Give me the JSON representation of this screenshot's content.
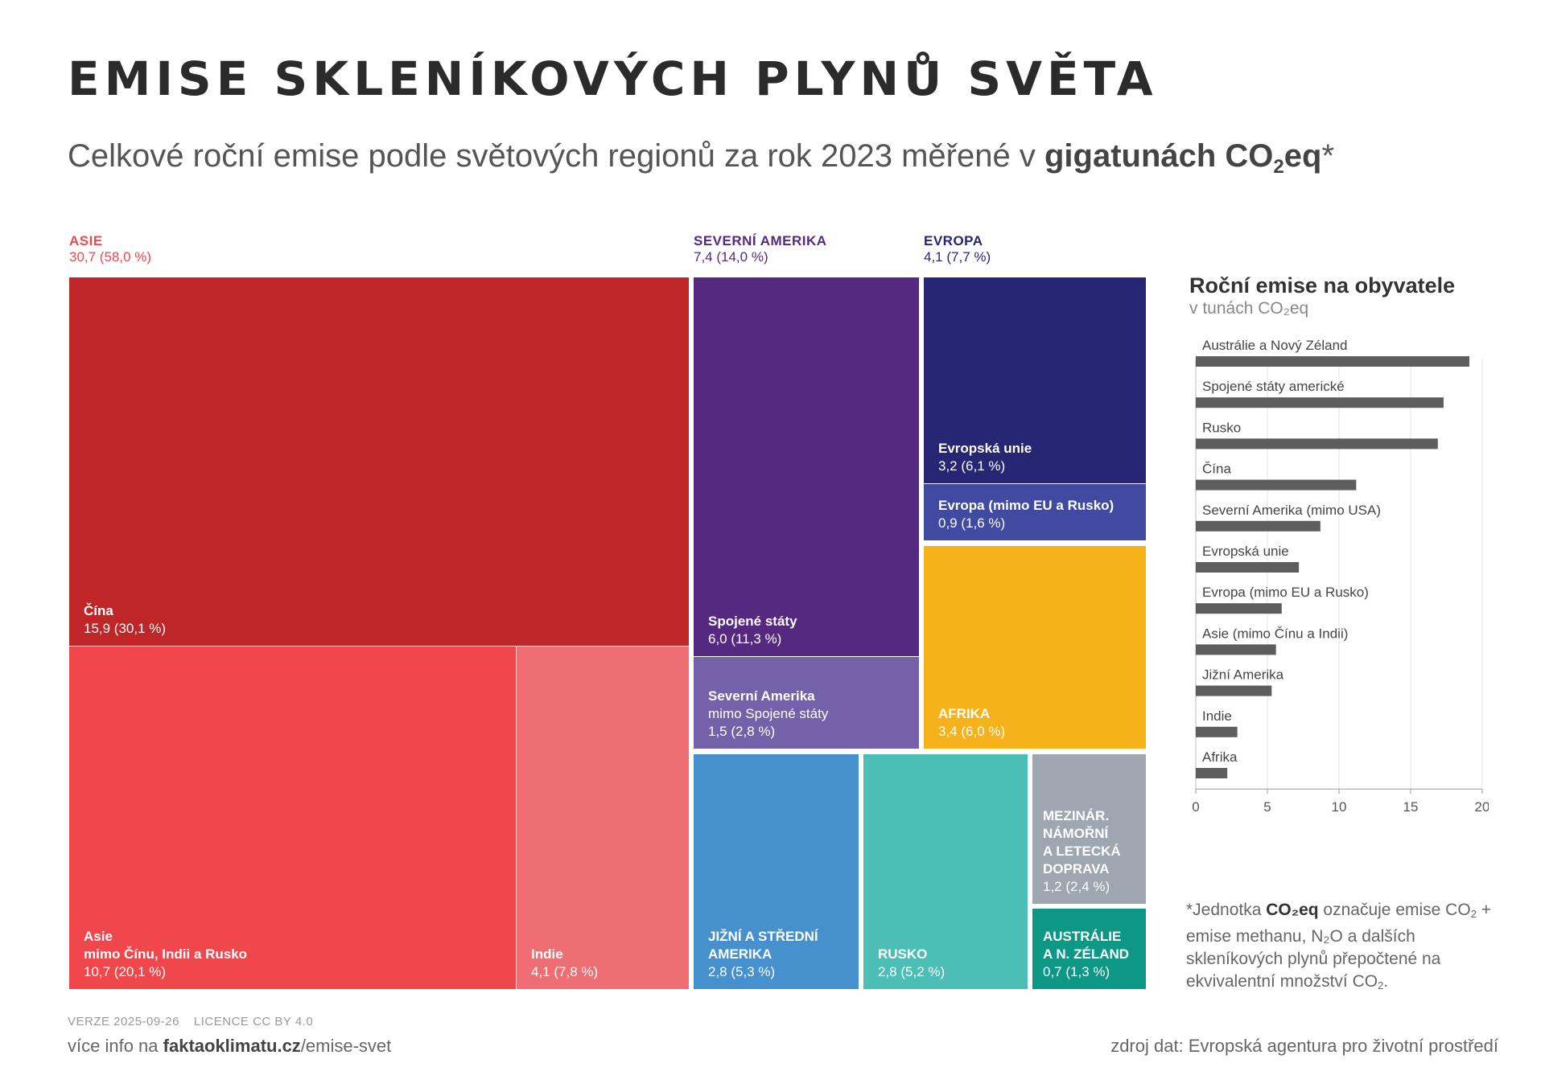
{
  "header": {
    "title": "EMISE SKLENÍKOVÝCH PLYNŮ SVĚTA",
    "subtitle_pre": "Celkové roční emise podle světových regionů za rok 2023 měřené v ",
    "subtitle_bold": "gigatunách CO",
    "subtitle_sub": "2",
    "subtitle_bold2": "eq",
    "subtitle_post": "*"
  },
  "chart_data": [
    {
      "type": "treemap",
      "unit": "gigatuny CO2eq",
      "groups": [
        {
          "name": "ASIE",
          "label_value": "30,7 (58,0 %)",
          "value": 30.7,
          "share": 58.0,
          "color": "#e94a4f"
        },
        {
          "name": "SEVERNÍ AMERIKA",
          "label_value": "7,4 (14,0 %)",
          "value": 7.4,
          "share": 14.0,
          "color": "#55297f"
        },
        {
          "name": "EVROPA",
          "label_value": "4,1 (7,7 %)",
          "value": 4.1,
          "share": 7.7,
          "color": "#262674"
        }
      ],
      "tiles": [
        {
          "id": "cina",
          "name": "Čína",
          "sub": "",
          "label_value": "15,9 (30,1 %)",
          "value": 15.9,
          "share": 30.1,
          "color": "#c02527"
        },
        {
          "id": "asie-ostatni",
          "name": "Asie",
          "sub": "mimo Čínu, Indii a Rusko",
          "label_value": "10,7 (20,1 %)",
          "value": 10.7,
          "share": 20.1,
          "color": "#ef474c"
        },
        {
          "id": "indie",
          "name": "Indie",
          "sub": "",
          "label_value": "4,1 (7,8 %)",
          "value": 4.1,
          "share": 7.8,
          "color": "#ef6e73"
        },
        {
          "id": "usa",
          "name": "Spojené státy",
          "sub": "",
          "label_value": "6,0 (11,3 %)",
          "value": 6.0,
          "share": 11.3,
          "color": "#55297f"
        },
        {
          "id": "sev-amerika-ostatni",
          "name": "Severní Amerika",
          "sub": "mimo Spojené státy",
          "label_value": "1,5 (2,8 %)",
          "value": 1.5,
          "share": 2.8,
          "color": "#7561a9"
        },
        {
          "id": "eu",
          "name": "Evropská unie",
          "sub": "",
          "label_value": "3,2 (6,1 %)",
          "value": 3.2,
          "share": 6.1,
          "color": "#262674"
        },
        {
          "id": "evropa-ostatni",
          "name": "Evropa (mimo EU a Rusko)",
          "sub": "",
          "label_value": "0,9 (1,6 %)",
          "value": 0.9,
          "share": 1.6,
          "color": "#3f4aa0"
        },
        {
          "id": "afrika",
          "name": "AFRIKA",
          "sub": "",
          "label_value": "3,4 (6,0 %)",
          "value": 3.4,
          "share": 6.0,
          "color": "#f6b21b"
        },
        {
          "id": "jizni-amerika",
          "name": "JIŽNÍ A STŘEDNÍ\nAMERIKA",
          "sub": "",
          "label_value": "2,8 (5,3 %)",
          "value": 2.8,
          "share": 5.3,
          "color": "#4690cd"
        },
        {
          "id": "rusko",
          "name": "RUSKO",
          "sub": "",
          "label_value": "2,8 (5,2 %)",
          "value": 2.8,
          "share": 5.2,
          "color": "#4bbfb6"
        },
        {
          "id": "doprava",
          "name": "MEZINÁR.\nNÁMOŘNÍ\nA LETECKÁ\nDOPRAVA",
          "sub": "",
          "label_value": "1,2 (2,4 %)",
          "value": 1.2,
          "share": 2.4,
          "color": "#9ea6b0"
        },
        {
          "id": "australie",
          "name": "AUSTRÁLIE\nA N. ZÉLAND",
          "sub": "",
          "label_value": "0,7 (1,3 %)",
          "value": 0.7,
          "share": 1.3,
          "color": "#0d9785"
        }
      ]
    },
    {
      "type": "bar",
      "orientation": "horizontal",
      "title": "Roční emise na obyvatele",
      "subtitle": "v tunách CO₂eq",
      "categories": [
        "Austrálie a Nový Zéland",
        "Spojené státy americké",
        "Rusko",
        "Čína",
        "Severní Amerika (mimo USA)",
        "Evropská unie",
        "Evropa (mimo EU a Rusko)",
        "Asie (mimo Čínu a Indii)",
        "Jižní Amerika",
        "Indie",
        "Afrika"
      ],
      "values": [
        19.1,
        17.3,
        16.9,
        11.2,
        8.7,
        7.2,
        6.0,
        5.6,
        5.3,
        2.9,
        2.2
      ],
      "xlim": [
        0,
        20
      ],
      "xticks": [
        "0",
        "5",
        "10",
        "15",
        "20"
      ],
      "grid": true,
      "bar_color": "#5d5d5d"
    }
  ],
  "footnote": {
    "star": "*Jednotka ",
    "bold": "CO₂eq",
    "rest1": " označuje emise CO",
    "sub1": "2",
    "rest2": " + emise methanu, N₂O a dalších skleníkových plynů přepočtené na ekvivalentní množství CO",
    "sub2": "2",
    "rest3": "."
  },
  "footer": {
    "version": "VERZE 2025-09-26",
    "license": "LICENCE CC BY 4.0",
    "more_pre": "více info na ",
    "more_bold": "faktaoklimatu.cz",
    "more_post": "/emise-svet",
    "source": "zdroj dat: Evropská agentura pro životní prostředí"
  }
}
